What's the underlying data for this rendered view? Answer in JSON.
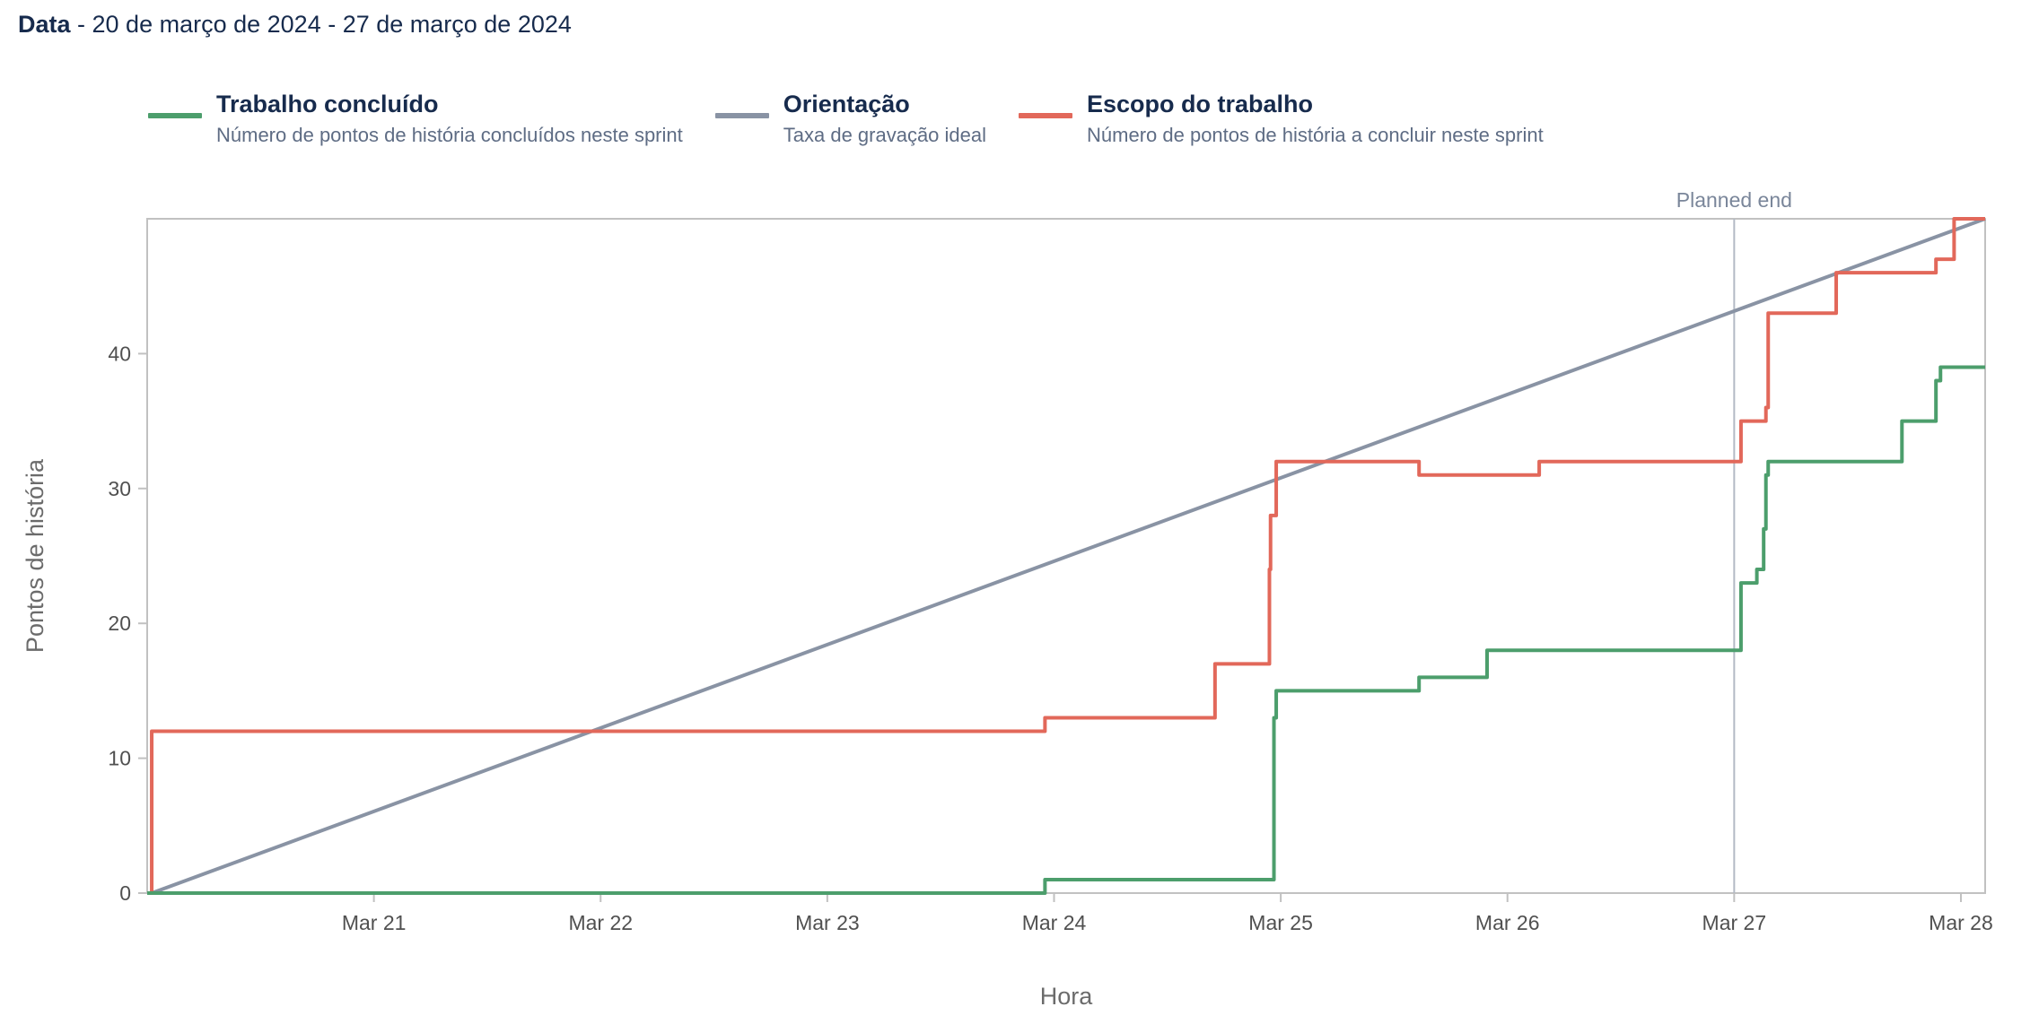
{
  "header": {
    "label": "Data",
    "range": " - 20 de março de 2024 - 27 de março de 2024"
  },
  "legend": [
    {
      "title": "Trabalho concluído",
      "desc": "Número de pontos de história concluídos neste sprint",
      "color": "#4c9e6c"
    },
    {
      "title": "Orientação",
      "desc": "Taxa de gravação ideal",
      "color": "#8993a4"
    },
    {
      "title": "Escopo do trabalho",
      "desc": "Número de pontos de história a concluir neste sprint",
      "color": "#e2685a"
    }
  ],
  "chart_data": {
    "type": "line",
    "title": "Data - 20 de março de 2024 - 27 de março de 2024",
    "xlabel": "Hora",
    "ylabel": "Pontos de história",
    "x_unit": "days since Mar 20 00:00",
    "xlim": [
      0,
      8.107
    ],
    "ylim": [
      0,
      50
    ],
    "x_ticks": [
      {
        "t": 1,
        "label": "Mar 21"
      },
      {
        "t": 2,
        "label": "Mar 22"
      },
      {
        "t": 3,
        "label": "Mar 23"
      },
      {
        "t": 4,
        "label": "Mar 24"
      },
      {
        "t": 5,
        "label": "Mar 25"
      },
      {
        "t": 6,
        "label": "Mar 26"
      },
      {
        "t": 7,
        "label": "Mar 27"
      },
      {
        "t": 8,
        "label": "Mar 28"
      }
    ],
    "y_ticks": [
      0,
      10,
      20,
      30,
      40
    ],
    "grid": false,
    "legend_position": "top",
    "annotations": [
      {
        "type": "vline",
        "t": 7.0,
        "label": "Planned end"
      }
    ],
    "series": [
      {
        "name": "Orientação",
        "color": "#8993a4",
        "step": false,
        "points": [
          [
            0.02,
            0
          ],
          [
            8.107,
            50
          ]
        ]
      },
      {
        "name": "Escopo do trabalho",
        "color": "#e2685a",
        "step": true,
        "points": [
          [
            0.0,
            0
          ],
          [
            0.02,
            12
          ],
          [
            3.96,
            13
          ],
          [
            4.71,
            17
          ],
          [
            4.95,
            24
          ],
          [
            4.955,
            28
          ],
          [
            4.98,
            32
          ],
          [
            5.61,
            31
          ],
          [
            6.14,
            32
          ],
          [
            7.03,
            35
          ],
          [
            7.14,
            36
          ],
          [
            7.15,
            43
          ],
          [
            7.45,
            46
          ],
          [
            7.89,
            47
          ],
          [
            7.97,
            50
          ],
          [
            8.107,
            50
          ]
        ]
      },
      {
        "name": "Trabalho concluído",
        "color": "#4c9e6c",
        "step": true,
        "points": [
          [
            0.0,
            0
          ],
          [
            3.96,
            1
          ],
          [
            4.97,
            13
          ],
          [
            4.98,
            15
          ],
          [
            5.61,
            16
          ],
          [
            5.91,
            18
          ],
          [
            7.03,
            23
          ],
          [
            7.1,
            24
          ],
          [
            7.13,
            27
          ],
          [
            7.14,
            31
          ],
          [
            7.15,
            32
          ],
          [
            7.74,
            35
          ],
          [
            7.89,
            38
          ],
          [
            7.91,
            39
          ],
          [
            8.107,
            39
          ]
        ]
      }
    ]
  }
}
